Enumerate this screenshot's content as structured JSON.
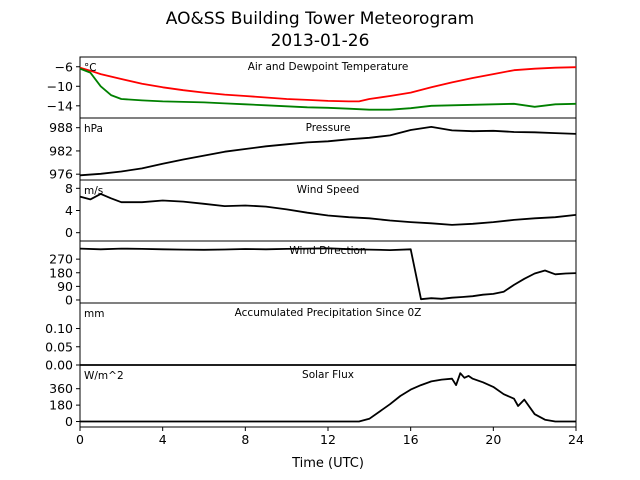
{
  "figure": {
    "title": "AO&SS Building Tower Meteorogram",
    "subtitle": "2013-01-26"
  },
  "chart_data": {
    "type": "line",
    "xlabel": "Time (UTC)",
    "xlim": [
      0,
      24
    ],
    "xticks": [
      0,
      4,
      8,
      12,
      16,
      20,
      24
    ],
    "xtick_labels": [
      "0",
      "4",
      "8",
      "12",
      "16",
      "20",
      "24"
    ],
    "colors": {
      "temperature": "#ff0000",
      "dewpoint": "#008000",
      "default": "#000000"
    },
    "panels": [
      {
        "id": "temp",
        "label": "Air and Dewpoint Temperature",
        "unit": "°C",
        "ylim": [
          -16.5,
          -4.0
        ],
        "yticks": [
          -6,
          -10,
          -14
        ],
        "ytick_labels": [
          "−6",
          "−10",
          "−14"
        ],
        "series": [
          {
            "key": "temperature",
            "x": [
              0,
              0.5,
              1,
              2,
              3,
              4,
              5,
              6,
              7,
              8,
              9,
              10,
              11,
              12,
              13,
              13.5,
              14,
              15,
              16,
              17,
              18,
              19,
              20,
              21,
              22,
              23,
              24
            ],
            "y": [
              -6.2,
              -6.8,
              -7.5,
              -8.5,
              -9.5,
              -10.2,
              -10.8,
              -11.3,
              -11.7,
              -12.0,
              -12.3,
              -12.6,
              -12.8,
              -13.0,
              -13.1,
              -13.1,
              -12.6,
              -12.0,
              -11.3,
              -10.2,
              -9.2,
              -8.3,
              -7.5,
              -6.7,
              -6.4,
              -6.2,
              -6.1
            ]
          },
          {
            "key": "dewpoint",
            "x": [
              0,
              0.5,
              1,
              1.5,
              2,
              3,
              4,
              5,
              6,
              7,
              8,
              9,
              10,
              11,
              12,
              13,
              14,
              15,
              16,
              17,
              18,
              19,
              20,
              21,
              22,
              23,
              24
            ],
            "y": [
              -6.4,
              -7.2,
              -10.0,
              -11.8,
              -12.6,
              -12.9,
              -13.1,
              -13.2,
              -13.3,
              -13.5,
              -13.7,
              -13.9,
              -14.1,
              -14.3,
              -14.4,
              -14.6,
              -14.8,
              -14.8,
              -14.5,
              -14.0,
              -13.9,
              -13.8,
              -13.7,
              -13.6,
              -14.2,
              -13.7,
              -13.6
            ]
          }
        ]
      },
      {
        "id": "pressure",
        "label": "Pressure",
        "unit": "hPa",
        "ylim": [
          974.5,
          990.5
        ],
        "yticks": [
          988,
          982,
          976
        ],
        "ytick_labels": [
          "988",
          "982",
          "976"
        ],
        "series": [
          {
            "key": "default",
            "x": [
              0,
              1,
              2,
              3,
              4,
              5,
              6,
              7,
              8,
              9,
              10,
              11,
              12,
              13,
              14,
              15,
              16,
              17,
              18,
              19,
              20,
              21,
              22,
              23,
              24
            ],
            "y": [
              975.7,
              976.1,
              976.7,
              977.5,
              978.7,
              979.8,
              980.8,
              981.8,
              982.5,
              983.2,
              983.7,
              984.2,
              984.5,
              985.0,
              985.4,
              986.0,
              987.4,
              988.2,
              987.3,
              987.1,
              987.2,
              986.9,
              986.8,
              986.6,
              986.4
            ]
          }
        ]
      },
      {
        "id": "wind_speed",
        "label": "Wind Speed",
        "unit": "m/s",
        "ylim": [
          -1.5,
          9.5
        ],
        "yticks": [
          8,
          4,
          0
        ],
        "ytick_labels": [
          "8",
          "4",
          "0"
        ],
        "series": [
          {
            "key": "default",
            "x": [
              0,
              0.5,
              1,
              1.5,
              2,
              3,
              4,
              5,
              6,
              7,
              8,
              9,
              10,
              11,
              12,
              13,
              14,
              15,
              16,
              17,
              18,
              19,
              20,
              21,
              22,
              23,
              24
            ],
            "y": [
              6.5,
              6.0,
              7.0,
              6.2,
              5.5,
              5.5,
              5.8,
              5.6,
              5.2,
              4.8,
              4.9,
              4.7,
              4.2,
              3.6,
              3.1,
              2.8,
              2.6,
              2.2,
              1.9,
              1.7,
              1.4,
              1.6,
              1.9,
              2.3,
              2.6,
              2.8,
              3.2
            ]
          }
        ]
      },
      {
        "id": "wind_dir",
        "label": "Wind Direction",
        "unit": "",
        "ylim": [
          -20,
          390
        ],
        "yticks": [
          270,
          180,
          90,
          0
        ],
        "ytick_labels": [
          "270",
          "180",
          "90",
          "0"
        ],
        "series": [
          {
            "key": "default",
            "x": [
              0,
              1,
              2,
              3,
              4,
              5,
              6,
              7,
              8,
              9,
              10,
              11,
              12,
              13,
              14,
              15,
              16,
              16.5,
              17,
              17.5,
              18,
              18.5,
              19,
              19.5,
              20,
              20.5,
              21,
              21.5,
              22,
              22.5,
              23,
              23.5,
              24
            ],
            "y": [
              340,
              335,
              340,
              338,
              335,
              333,
              332,
              334,
              337,
              335,
              338,
              340,
              342,
              336,
              333,
              330,
              335,
              5,
              12,
              8,
              15,
              20,
              25,
              35,
              40,
              55,
              100,
              140,
              175,
              195,
              170,
              175,
              178
            ]
          }
        ]
      },
      {
        "id": "precip",
        "label": "Accumulated Precipitation Since 0Z",
        "unit": "mm",
        "ylim": [
          0,
          0.17
        ],
        "yticks": [
          0.1,
          0.05,
          0.0
        ],
        "ytick_labels": [
          "0.10",
          "0.05",
          "0.00"
        ],
        "series": [
          {
            "key": "default",
            "x": [
              0,
              24
            ],
            "y": [
              0.0,
              0.0
            ]
          }
        ]
      },
      {
        "id": "solar",
        "label": "Solar Flux",
        "unit": "W/m^2",
        "ylim": [
          -60,
          620
        ],
        "yticks": [
          360,
          180,
          0
        ],
        "ytick_labels": [
          "360",
          "180",
          "0"
        ],
        "series": [
          {
            "key": "default",
            "x": [
              0,
              12,
              13.5,
              14,
              14.5,
              15,
              15.5,
              16,
              16.5,
              17,
              17.5,
              18,
              18.2,
              18.4,
              18.6,
              18.8,
              19,
              19.5,
              20,
              20.5,
              21,
              21.2,
              21.5,
              22,
              22.5,
              23,
              24
            ],
            "y": [
              0,
              0,
              0,
              30,
              110,
              190,
              280,
              350,
              400,
              440,
              460,
              470,
              400,
              530,
              480,
              500,
              470,
              430,
              380,
              300,
              250,
              170,
              240,
              80,
              20,
              0,
              0
            ]
          }
        ]
      }
    ]
  }
}
